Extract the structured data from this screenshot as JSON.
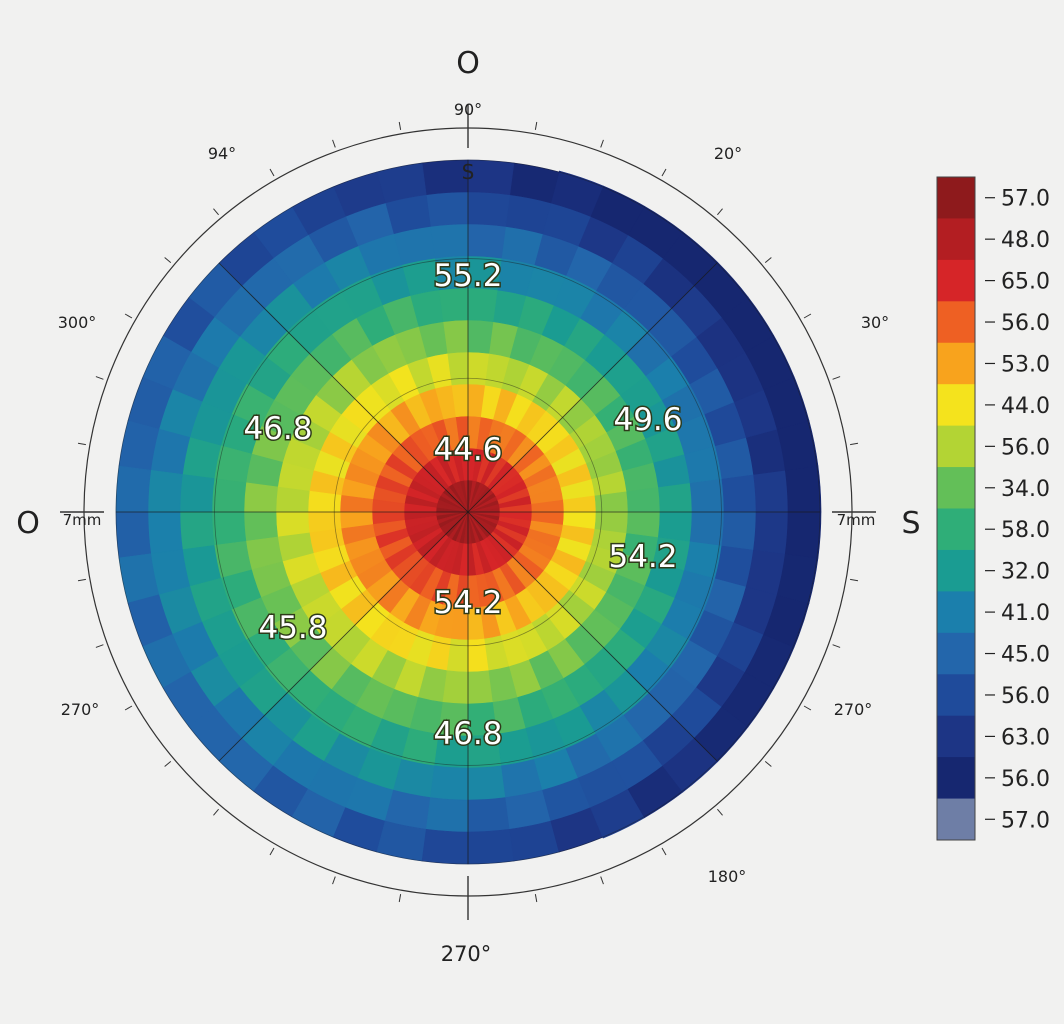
{
  "chart_data": {
    "type": "heatmap",
    "subtype": "polar-corneal-map",
    "title": "",
    "colors": {
      "background": "#f1f1f0",
      "axis": "#333333",
      "value_label_text": "#ffffff",
      "value_label_outline": "#2e3a1a"
    },
    "orientation_labels": {
      "top": "O",
      "bottom": "270°",
      "left": "O",
      "right": "S"
    },
    "angle_labels": [
      "90°",
      "94°",
      "20°",
      "300°",
      "30°",
      "270°",
      "270°",
      "180°",
      "S"
    ],
    "radius_labels": {
      "left": "7mm",
      "right": "7mm"
    },
    "map": {
      "n_rings": 11,
      "n_sectors": 48,
      "rings_value_scale": [
        44.6,
        57.0
      ],
      "grid": {
        "radial_lines": 8,
        "circles": 3
      }
    },
    "value_labels": [
      {
        "text": "55.2",
        "position": "top"
      },
      {
        "text": "46.8",
        "position": "upper-left"
      },
      {
        "text": "49.6",
        "position": "upper-right"
      },
      {
        "text": "44.6",
        "position": "center"
      },
      {
        "text": "54.2",
        "position": "right"
      },
      {
        "text": "54.2",
        "position": "lower-center"
      },
      {
        "text": "45.8",
        "position": "lower-left"
      },
      {
        "text": "46.8",
        "position": "bottom"
      }
    ],
    "legend": {
      "placement": "right",
      "entries": [
        {
          "label": "57.0",
          "color": "#8e1a1c"
        },
        {
          "label": "48.0",
          "color": "#b31e22"
        },
        {
          "label": "65.0",
          "color": "#d62528"
        },
        {
          "label": "56.0",
          "color": "#ee6023"
        },
        {
          "label": "53.0",
          "color": "#f8a31d"
        },
        {
          "label": "44.0",
          "color": "#f4e31d"
        },
        {
          "label": "56.0",
          "color": "#b3d434"
        },
        {
          "label": "34.0",
          "color": "#63bf58"
        },
        {
          "label": "58.0",
          "color": "#2fae78"
        },
        {
          "label": "32.0",
          "color": "#1a9c92"
        },
        {
          "label": "41.0",
          "color": "#1b7fac"
        },
        {
          "label": "45.0",
          "color": "#2366ab"
        },
        {
          "label": "56.0",
          "color": "#1f4b9b"
        },
        {
          "label": "63.0",
          "color": "#1d3585"
        },
        {
          "label": "56.0",
          "color": "#162770"
        },
        {
          "label": "57.0",
          "color": "#6e7ea6"
        }
      ]
    }
  }
}
